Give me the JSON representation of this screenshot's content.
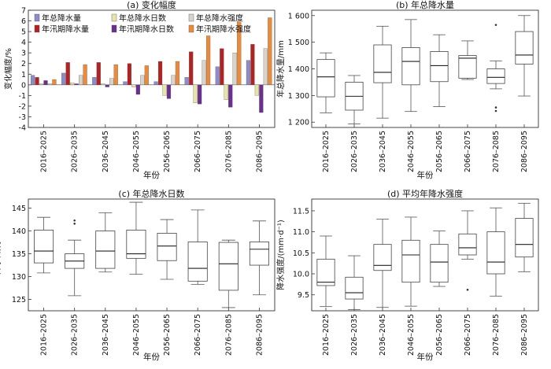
{
  "chart_data": [
    {
      "type": "bar",
      "title": "(a) 变化幅度",
      "xlabel": "年份",
      "ylabel": "变化幅度/%",
      "ylim": [
        -4,
        7
      ],
      "yticks": [
        -4,
        -3,
        -2,
        -1,
        0,
        1,
        2,
        3,
        4,
        5,
        6,
        7
      ],
      "categories": [
        "2016–2025",
        "2026–2035",
        "2036–2045",
        "2046–2055",
        "2056–2065",
        "2066–2075",
        "2076–2085",
        "2086–2095"
      ],
      "legend_position": "top-left",
      "series": [
        {
          "name": "年总降水量",
          "color": "#8c8cc8",
          "values": [
            0.9,
            1.1,
            0.7,
            0.3,
            0.3,
            0.7,
            1.7,
            2.3
          ]
        },
        {
          "name": "年汛期降水量",
          "color": "#b32222",
          "values": [
            0.7,
            2.1,
            2.1,
            2.0,
            2.2,
            3.1,
            3.4,
            3.8
          ]
        },
        {
          "name": "年总降水日数",
          "color": "#e8e4a8",
          "values": [
            0.1,
            0.2,
            0.1,
            -0.2,
            -1.0,
            -1.7,
            -1.4,
            -1.0
          ]
        },
        {
          "name": "年汛期降水日数",
          "color": "#6a2f8f",
          "values": [
            0.4,
            0.1,
            -0.2,
            -0.9,
            -1.3,
            -1.8,
            -2.1,
            -2.6
          ]
        },
        {
          "name": "年总降水强度",
          "color": "#d8d4cc",
          "values": [
            0.1,
            0.9,
            0.6,
            0.9,
            0.9,
            2.3,
            3.0,
            3.4
          ]
        },
        {
          "name": "年汛期降水强度",
          "color": "#ec8a3c",
          "values": [
            0.5,
            1.9,
            1.9,
            1.8,
            2.2,
            4.6,
            5.9,
            6.3
          ]
        }
      ]
    },
    {
      "type": "box",
      "title": "(b) 年总降水量",
      "xlabel": "年份",
      "ylabel": "年总降水量/mm",
      "ylim": [
        1180,
        1620
      ],
      "yticks": [
        1200,
        1300,
        1400,
        1500,
        1600
      ],
      "categories": [
        "2016–2025",
        "2026–2035",
        "2036–2045",
        "2046–2055",
        "2056–2065",
        "2066–2075",
        "2076–2085",
        "2086–2095"
      ],
      "boxes": [
        {
          "min": 1235,
          "q1": 1295,
          "median": 1370,
          "q3": 1435,
          "max": 1460,
          "outliers": []
        },
        {
          "min": 1193,
          "q1": 1245,
          "median": 1297,
          "q3": 1350,
          "max": 1375,
          "outliers": []
        },
        {
          "min": 1215,
          "q1": 1348,
          "median": 1387,
          "q3": 1490,
          "max": 1560,
          "outliers": []
        },
        {
          "min": 1240,
          "q1": 1340,
          "median": 1428,
          "q3": 1480,
          "max": 1585,
          "outliers": []
        },
        {
          "min": 1258,
          "q1": 1352,
          "median": 1412,
          "q3": 1465,
          "max": 1528,
          "outliers": []
        },
        {
          "min": 1360,
          "q1": 1365,
          "median": 1440,
          "q3": 1450,
          "max": 1505,
          "outliers": []
        },
        {
          "min": 1325,
          "q1": 1345,
          "median": 1368,
          "q3": 1400,
          "max": 1430,
          "outliers": [
            1565,
            1255,
            1242
          ]
        },
        {
          "min": 1298,
          "q1": 1418,
          "median": 1452,
          "q3": 1540,
          "max": 1600,
          "outliers": []
        }
      ]
    },
    {
      "type": "box",
      "title": "(c) 年总降水日数",
      "xlabel": "年份",
      "ylabel": "降水日数/d",
      "ylim": [
        122.5,
        147
      ],
      "yticks": [
        125,
        130,
        135,
        140,
        145
      ],
      "categories": [
        "2016–2025",
        "2026–2035",
        "2036–2045",
        "2046–2055",
        "2056–2065",
        "2066–2075",
        "2076–2085",
        "2086–2095"
      ],
      "boxes": [
        {
          "min": 130.8,
          "q1": 133.0,
          "median": 135.6,
          "q3": 140.2,
          "max": 143.0,
          "outliers": []
        },
        {
          "min": 125.8,
          "q1": 131.8,
          "median": 133.4,
          "q3": 135.0,
          "max": 138.0,
          "outliers": [
            142.3,
            141.6
          ]
        },
        {
          "min": 131.0,
          "q1": 131.8,
          "median": 135.6,
          "q3": 140.0,
          "max": 144.0,
          "outliers": []
        },
        {
          "min": 130.5,
          "q1": 134.0,
          "median": 135.0,
          "q3": 140.2,
          "max": 146.3,
          "outliers": []
        },
        {
          "min": 129.4,
          "q1": 133.5,
          "median": 136.7,
          "q3": 139.5,
          "max": 142.5,
          "outliers": []
        },
        {
          "min": 128.3,
          "q1": 129.0,
          "median": 131.8,
          "q3": 137.6,
          "max": 144.6,
          "outliers": []
        },
        {
          "min": 123.2,
          "q1": 127.0,
          "median": 132.8,
          "q3": 137.5,
          "max": 138.0,
          "outliers": []
        },
        {
          "min": 126.0,
          "q1": 132.5,
          "median": 136.0,
          "q3": 137.6,
          "max": 142.2,
          "outliers": []
        }
      ]
    },
    {
      "type": "box",
      "title": "(d) 平均年降水强度",
      "xlabel": "年份",
      "ylabel": "降水强度/(mm·d⁻¹)",
      "ylim": [
        9.12,
        11.78
      ],
      "yticks": [
        9.5,
        10.0,
        10.5,
        11.0,
        11.5
      ],
      "categories": [
        "2016–2025",
        "2026–2035",
        "2036–2045",
        "2046–2055",
        "2056–2065",
        "2066–2075",
        "2076–2085",
        "2086–2095"
      ],
      "boxes": [
        {
          "min": 9.22,
          "q1": 9.72,
          "median": 9.8,
          "q3": 10.35,
          "max": 10.9,
          "outliers": []
        },
        {
          "min": 9.15,
          "q1": 9.4,
          "median": 9.55,
          "q3": 9.92,
          "max": 10.43,
          "outliers": []
        },
        {
          "min": 9.2,
          "q1": 10.08,
          "median": 10.2,
          "q3": 10.7,
          "max": 11.3,
          "outliers": []
        },
        {
          "min": 9.23,
          "q1": 9.8,
          "median": 10.45,
          "q3": 10.8,
          "max": 11.35,
          "outliers": []
        },
        {
          "min": 9.7,
          "q1": 9.8,
          "median": 10.28,
          "q3": 10.7,
          "max": 11.02,
          "outliers": []
        },
        {
          "min": 10.35,
          "q1": 10.45,
          "median": 10.62,
          "q3": 10.95,
          "max": 11.5,
          "outliers": [
            9.62
          ]
        },
        {
          "min": 9.47,
          "q1": 10.0,
          "median": 10.28,
          "q3": 11.0,
          "max": 11.57,
          "outliers": []
        },
        {
          "min": 10.05,
          "q1": 10.4,
          "median": 10.7,
          "q3": 11.32,
          "max": 11.68,
          "outliers": []
        }
      ]
    }
  ]
}
